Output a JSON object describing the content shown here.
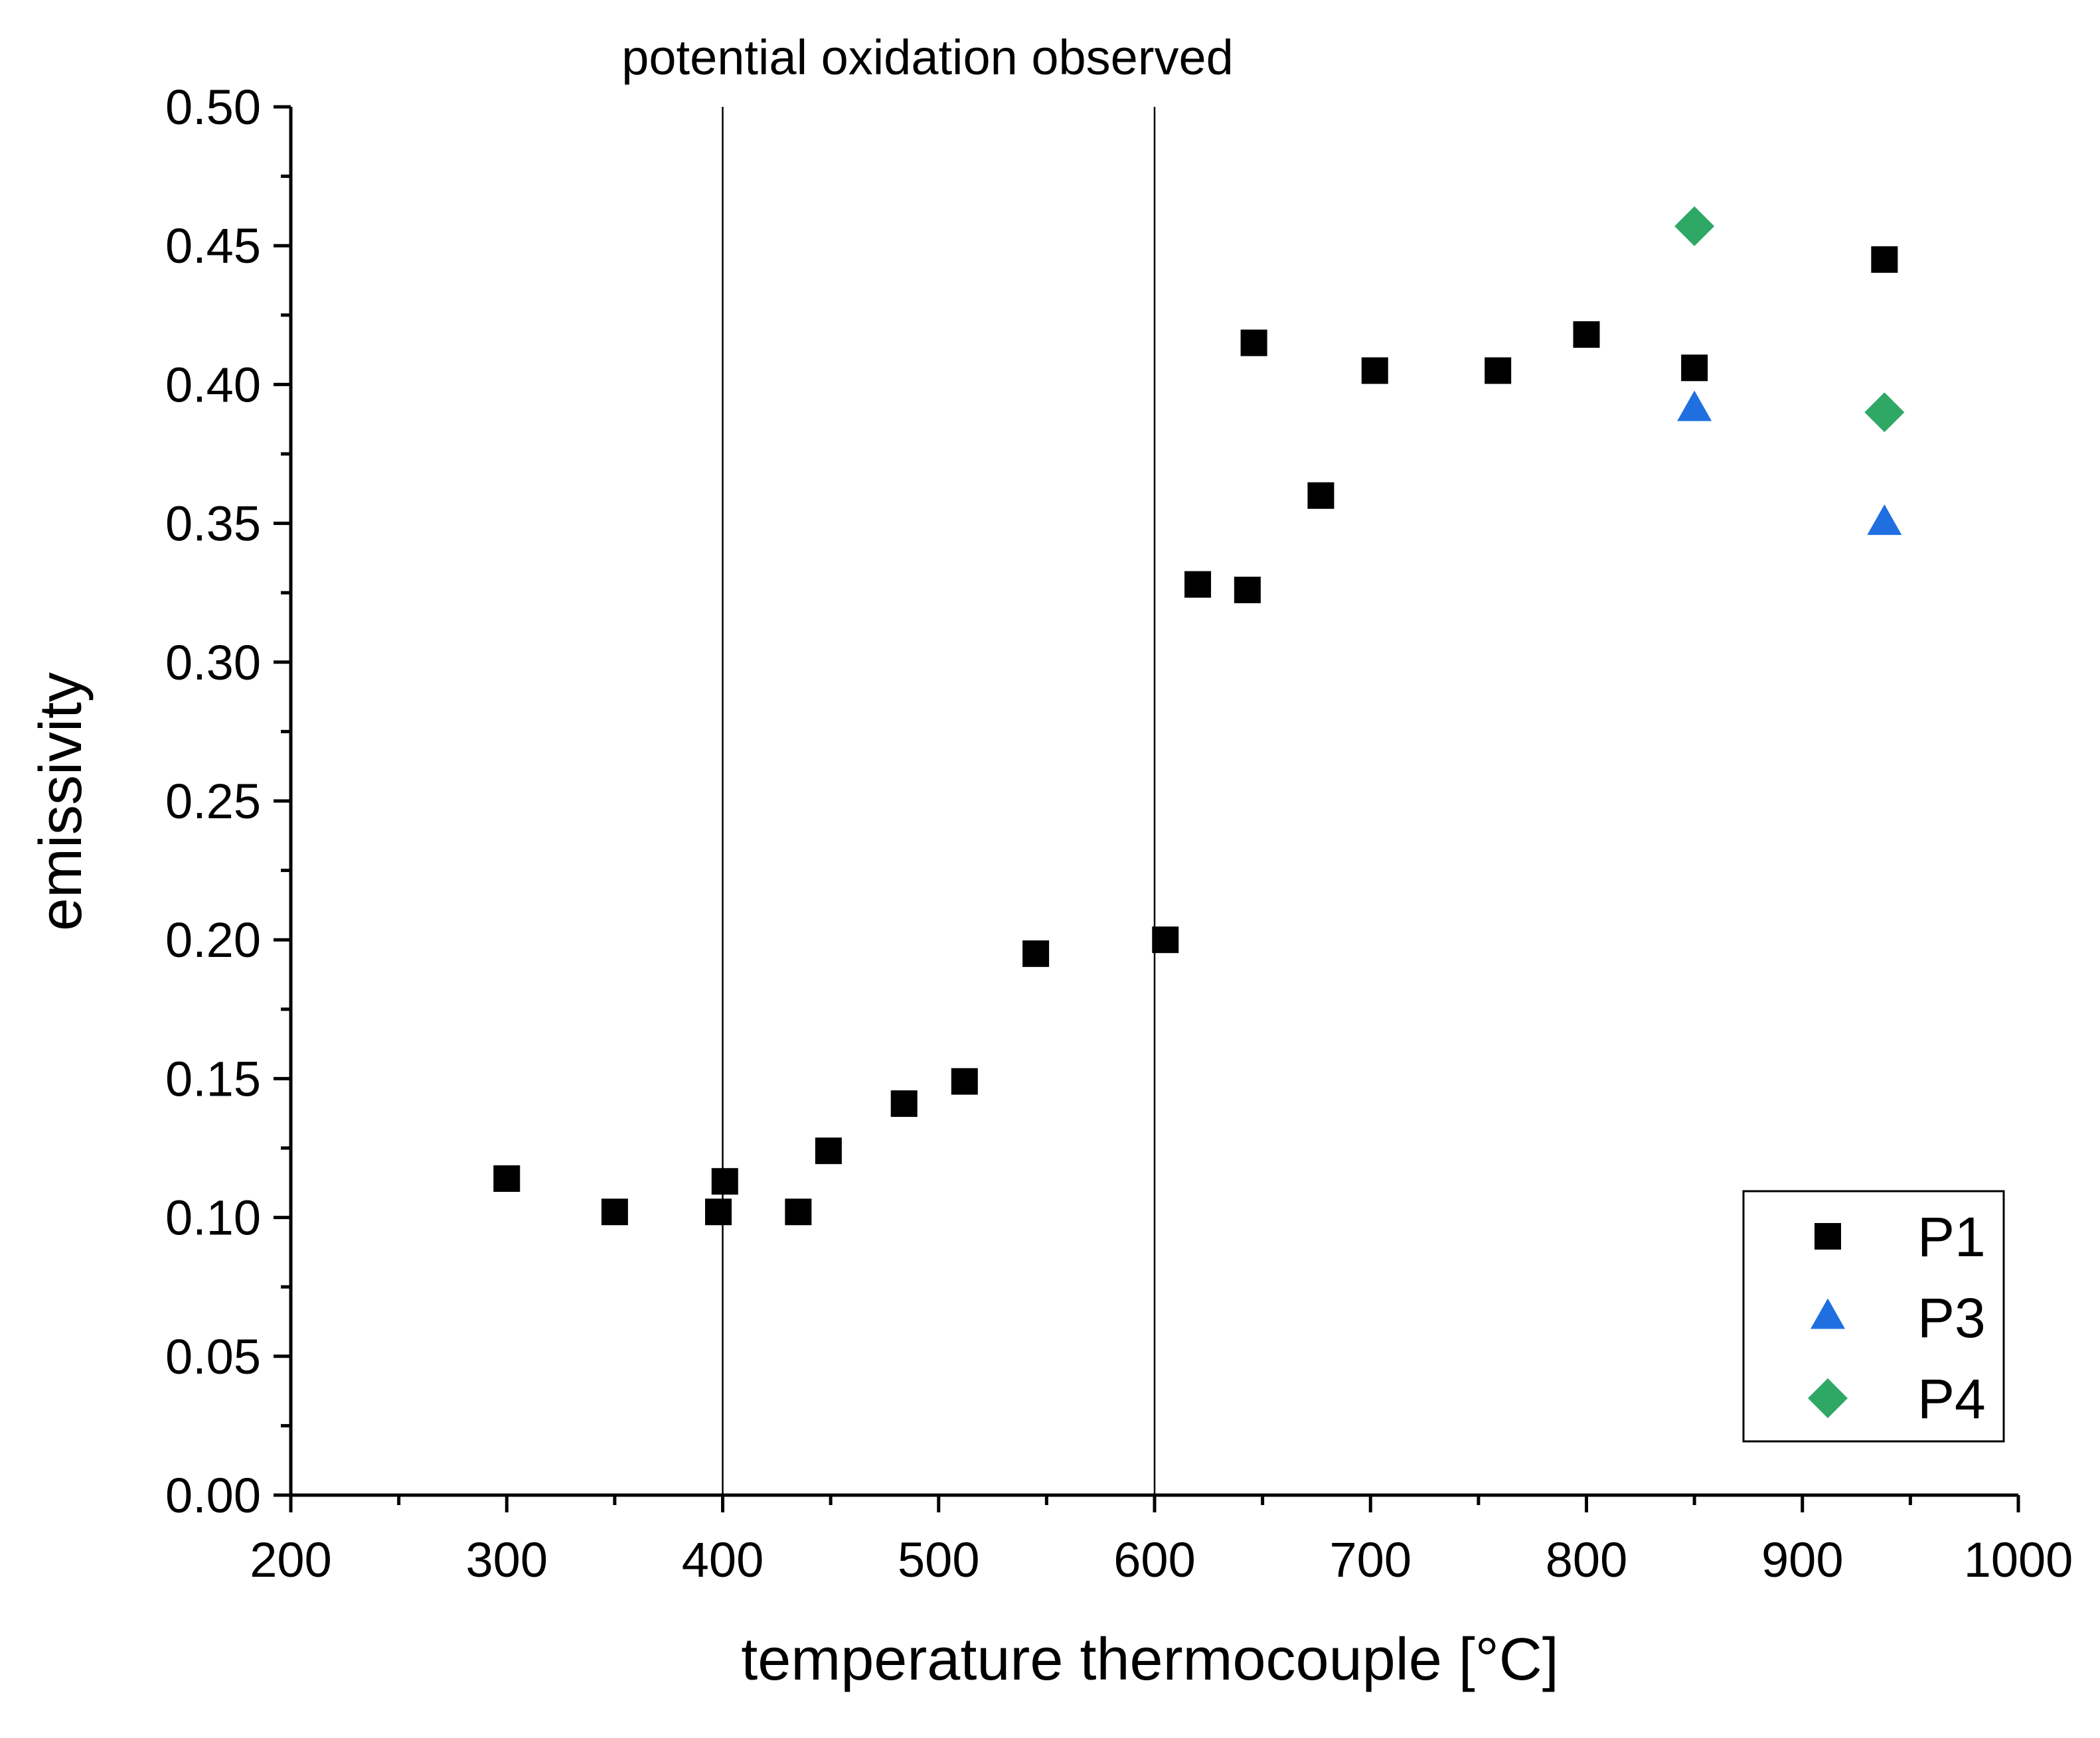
{
  "chart_data": {
    "type": "scatter",
    "title": "",
    "xlabel": "temperature thermocouple [°C]",
    "ylabel": "emissivity",
    "xlim": [
      200,
      1000
    ],
    "ylim": [
      0.0,
      0.5
    ],
    "x_ticks": [
      200,
      300,
      400,
      500,
      600,
      700,
      800,
      900,
      1000
    ],
    "x_tick_labels": [
      "200",
      "300",
      "400",
      "500",
      "600",
      "700",
      "800",
      "900",
      "1000"
    ],
    "y_ticks": [
      0.0,
      0.05,
      0.1,
      0.15,
      0.2,
      0.25,
      0.3,
      0.35,
      0.4,
      0.45,
      0.5
    ],
    "y_tick_labels": [
      "0.00",
      "0.05",
      "0.10",
      "0.15",
      "0.20",
      "0.25",
      "0.30",
      "0.35",
      "0.40",
      "0.45",
      "0.50"
    ],
    "grid": false,
    "legend_position": "bottom-right",
    "series": [
      {
        "name": "P1",
        "marker": "square",
        "color": "#000000",
        "x": [
          300,
          350,
          398,
          401,
          435,
          449,
          484,
          512,
          545,
          605,
          620,
          643,
          646,
          677,
          702,
          759,
          800,
          850,
          938
        ],
        "y": [
          0.114,
          0.102,
          0.102,
          0.113,
          0.102,
          0.124,
          0.141,
          0.149,
          0.195,
          0.2,
          0.328,
          0.326,
          0.415,
          0.36,
          0.405,
          0.405,
          0.418,
          0.406,
          0.445
        ]
      },
      {
        "name": "P3",
        "marker": "triangle",
        "color": "#1f6fe0",
        "x": [
          850,
          938
        ],
        "y": [
          0.391,
          0.35
        ]
      },
      {
        "name": "P4",
        "marker": "diamond",
        "color": "#2fa866",
        "x": [
          850,
          938
        ],
        "y": [
          0.457,
          0.39
        ]
      }
    ],
    "vertical_lines": [
      400,
      600
    ],
    "annotations": [
      {
        "text": "potential oxidation observed"
      }
    ]
  }
}
